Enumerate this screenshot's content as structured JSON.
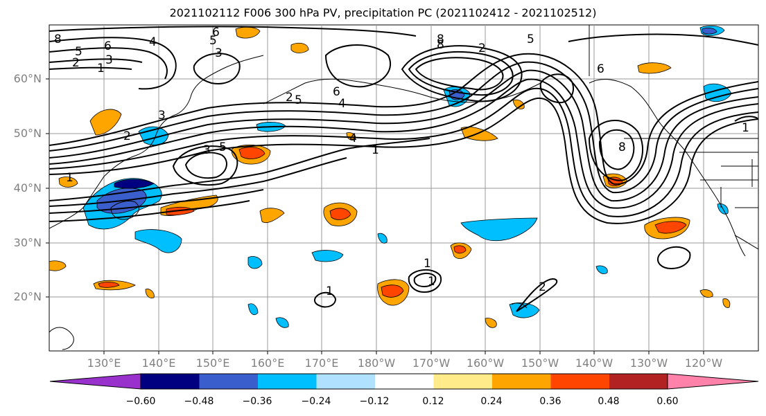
{
  "title": "2021102112 F006 300 hPa PV, precipitation PC (2021102412 - 2021102512)",
  "lat_labels": [
    "60°N",
    "50°N",
    "40°N",
    "30°N",
    "20°N"
  ],
  "lon_labels": [
    "130°E",
    "140°E",
    "150°E",
    "160°E",
    "170°E",
    "180°W",
    "170°W",
    "160°W",
    "150°W",
    "140°W",
    "130°W",
    "120°W"
  ],
  "colorbar": {
    "colors": [
      "#9932cc",
      "#000080",
      "#3a5fcd",
      "#00bfff",
      "#b0e2ff",
      "#ffffff",
      "#ffeb8a",
      "#ffa500",
      "#ff4500",
      "#b22222",
      "#ff82ab"
    ],
    "ticks": [
      "−0.60",
      "−0.48",
      "−0.36",
      "−0.24",
      "−0.12",
      "0.12",
      "0.24",
      "0.36",
      "0.48",
      "0.60"
    ]
  },
  "contour_labels": [
    "8",
    "6",
    "5",
    "3",
    "2",
    "1",
    "4",
    "5",
    "3",
    "6",
    "8",
    "5",
    "2",
    "8",
    "6",
    "4",
    "5",
    "2",
    "1",
    "4",
    "3",
    "5",
    "1",
    "2",
    "3",
    "6",
    "8",
    "1",
    "1",
    "1",
    "2",
    "1"
  ]
}
